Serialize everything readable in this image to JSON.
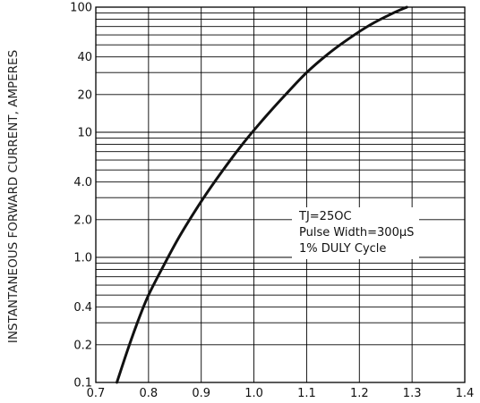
{
  "chart_data": {
    "type": "line",
    "title": "",
    "xlabel": "",
    "ylabel": "INSTANTANEOUS FORWARD CURRENT, AMPERES",
    "yscale": "log",
    "xlim": [
      0.7,
      1.4
    ],
    "ylim": [
      0.1,
      100
    ],
    "grid": true,
    "x_ticks": [
      "0.7",
      "0.8",
      "0.9",
      "1.0",
      "1.1",
      "1.2",
      "1.3",
      "1.4"
    ],
    "y_ticks": [
      {
        "value": 0.1,
        "label": "0.1"
      },
      {
        "value": 0.2,
        "label": "0.2"
      },
      {
        "value": 0.4,
        "label": "0.4"
      },
      {
        "value": 1,
        "label": "1.0"
      },
      {
        "value": 2,
        "label": "2.0"
      },
      {
        "value": 4,
        "label": "4.0"
      },
      {
        "value": 10,
        "label": "10"
      },
      {
        "value": 20,
        "label": "20"
      },
      {
        "value": 40,
        "label": "40"
      },
      {
        "value": 100,
        "label": "100"
      }
    ],
    "series": [
      {
        "x": [
          0.74,
          0.76,
          0.78,
          0.8,
          0.83,
          0.86,
          0.9,
          0.94,
          0.98,
          1.02,
          1.06,
          1.1,
          1.14,
          1.18,
          1.22,
          1.26,
          1.29
        ],
        "y": [
          0.1,
          0.18,
          0.31,
          0.5,
          0.88,
          1.5,
          2.8,
          4.9,
          8.2,
          13,
          20,
          30,
          42,
          56,
          72,
          88,
          100
        ]
      }
    ],
    "annotation": [
      "TJ=25OC",
      "Pulse Width=300μS",
      "1% DULY Cycle"
    ]
  }
}
